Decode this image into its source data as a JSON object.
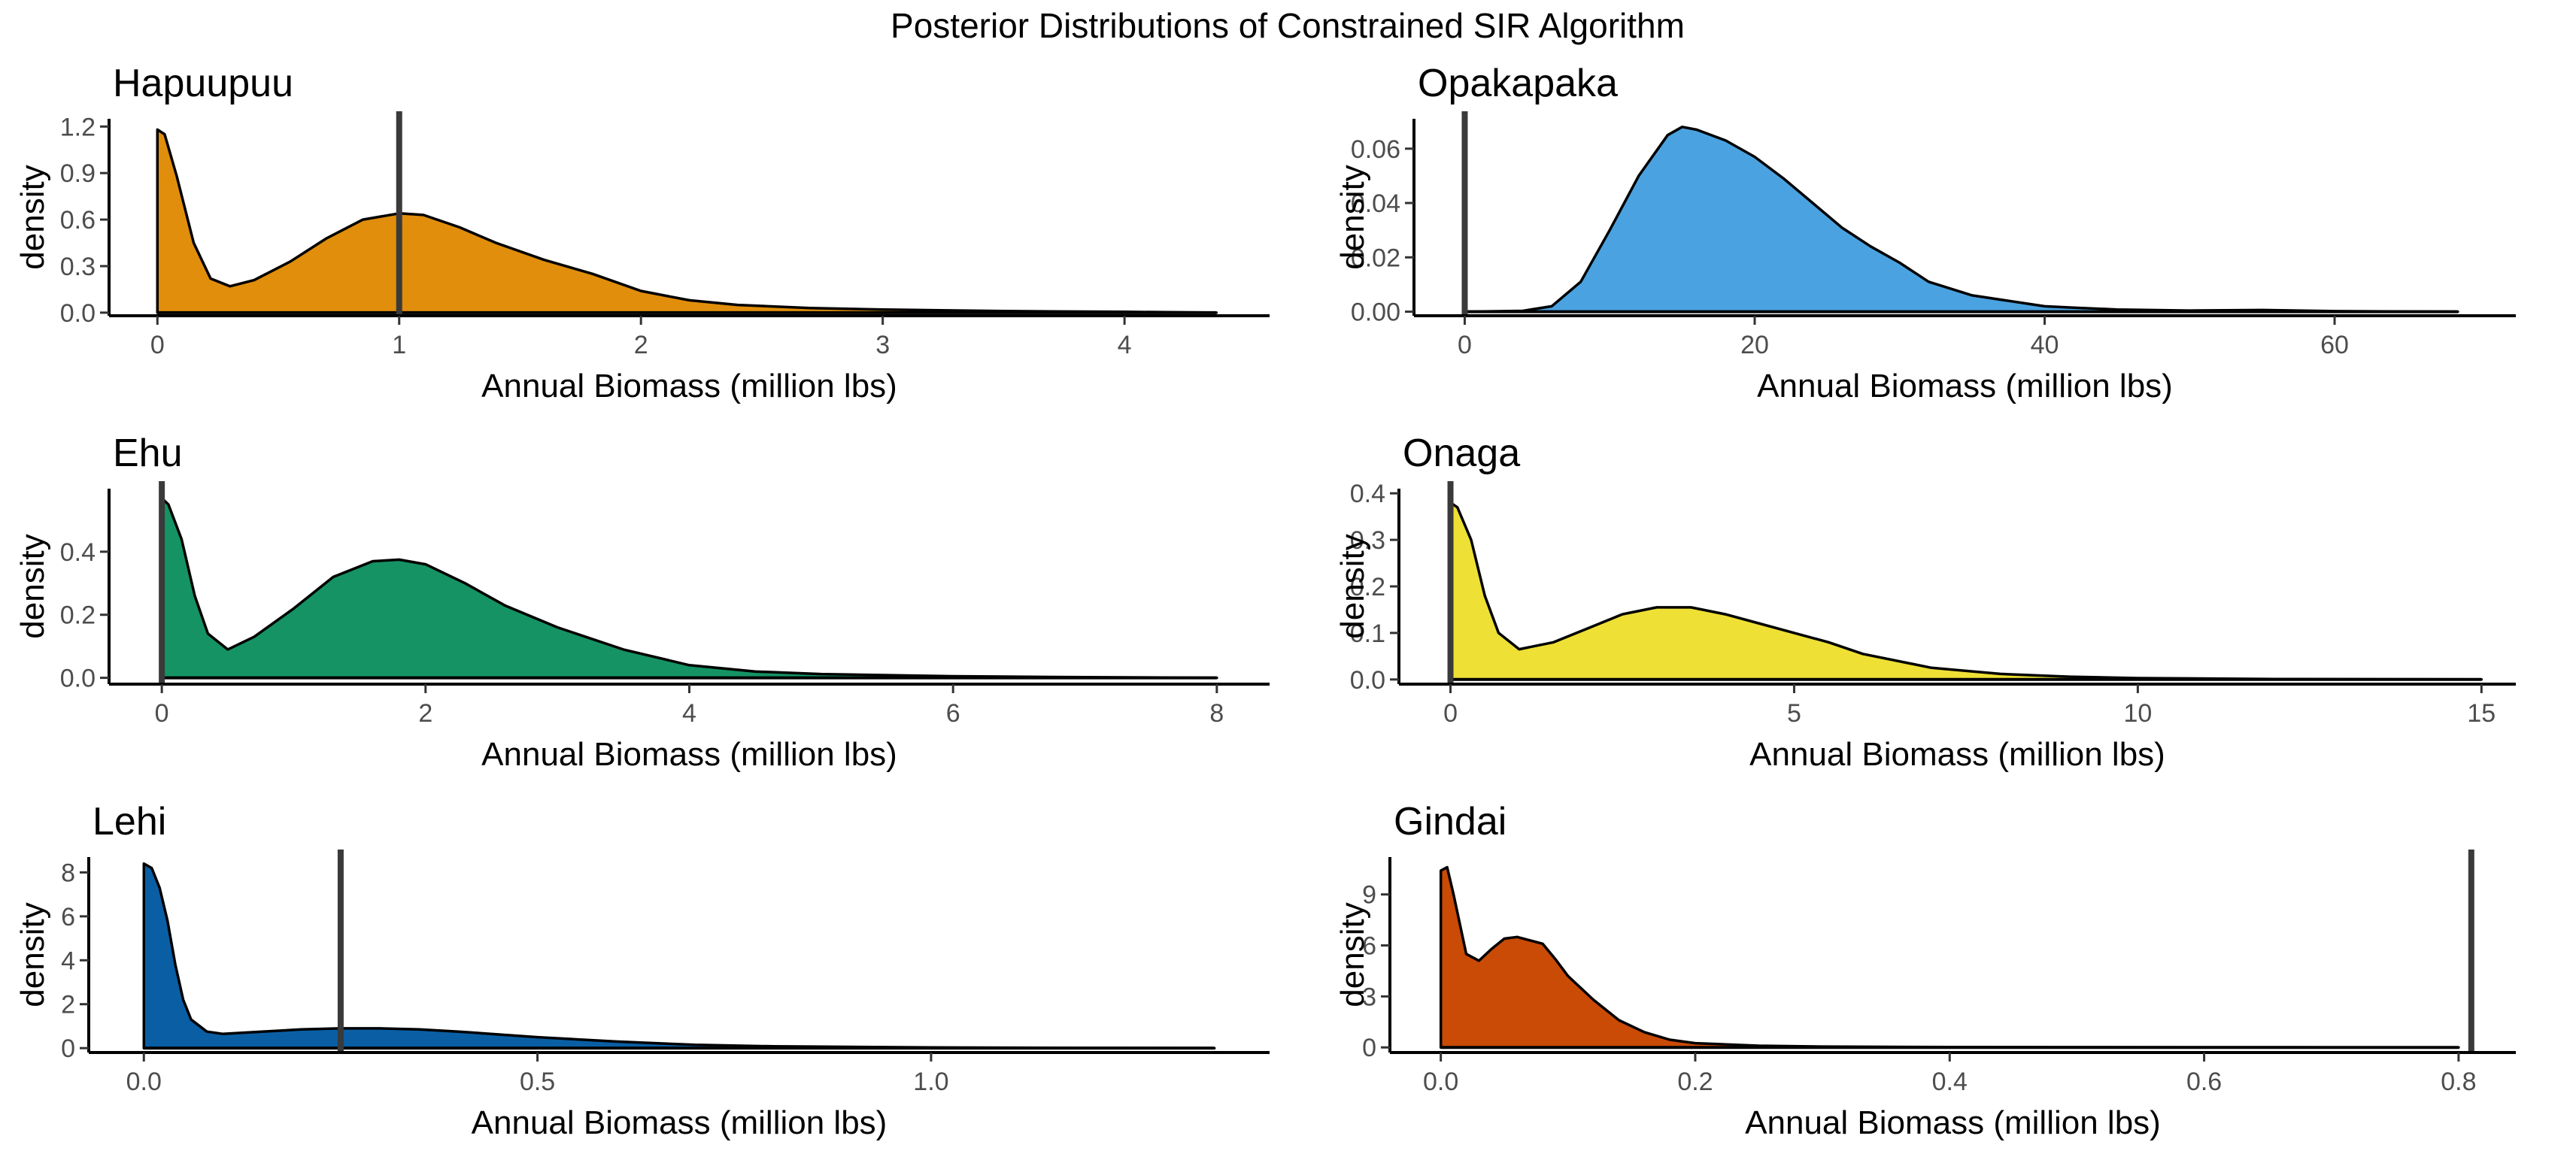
{
  "figure_title": "Posterior Distributions of Constrained SIR Algorithm",
  "chart_data": [
    {
      "type": "area",
      "title": "Hapuupuu",
      "xlabel": "Annual Biomass (million lbs)",
      "ylabel": "density",
      "fill_color": "#E08E0B",
      "xlim": [
        -0.2,
        4.6
      ],
      "ylim": [
        -0.02,
        1.25
      ],
      "x_ticks": [
        0,
        1,
        2,
        3,
        4
      ],
      "x_tick_labels": [
        "0",
        "1",
        "2",
        "3",
        "4"
      ],
      "y_ticks": [
        0,
        0.3,
        0.6,
        0.9,
        1.2
      ],
      "y_tick_labels": [
        "0.0",
        "0.3",
        "0.6",
        "0.9",
        "1.2"
      ],
      "reference_x": 1.0,
      "x": [
        0,
        0.03,
        0.08,
        0.15,
        0.22,
        0.3,
        0.4,
        0.55,
        0.7,
        0.85,
        1.0,
        1.1,
        1.25,
        1.4,
        1.6,
        1.8,
        2.0,
        2.2,
        2.4,
        2.7,
        3.0,
        3.5,
        4.0,
        4.38
      ],
      "y": [
        1.18,
        1.15,
        0.88,
        0.45,
        0.22,
        0.17,
        0.21,
        0.33,
        0.48,
        0.6,
        0.64,
        0.63,
        0.55,
        0.45,
        0.34,
        0.25,
        0.14,
        0.08,
        0.05,
        0.03,
        0.02,
        0.01,
        0.005,
        0.0
      ]
    },
    {
      "type": "area",
      "title": "Opakapaka",
      "xlabel": "Annual Biomass (million lbs)",
      "ylabel": "density",
      "fill_color": "#4AA3E0",
      "xlim": [
        -3.5,
        72.5
      ],
      "ylim": [
        -0.0015,
        0.071
      ],
      "x_ticks": [
        0,
        20,
        40,
        60
      ],
      "x_tick_labels": [
        "0",
        "20",
        "40",
        "60"
      ],
      "y_ticks": [
        0,
        0.02,
        0.04,
        0.06
      ],
      "y_tick_labels": [
        "0.00",
        "0.02",
        "0.04",
        "0.06"
      ],
      "reference_x": 0,
      "x": [
        0,
        4,
        6,
        8,
        10,
        12,
        14,
        15,
        16,
        18,
        20,
        22,
        24,
        26,
        28,
        30,
        32,
        35,
        40,
        42,
        45,
        50,
        55,
        60,
        68.5
      ],
      "y": [
        0,
        0.0003,
        0.002,
        0.011,
        0.03,
        0.05,
        0.065,
        0.068,
        0.067,
        0.063,
        0.057,
        0.049,
        0.04,
        0.031,
        0.024,
        0.018,
        0.011,
        0.006,
        0.002,
        0.0015,
        0.0008,
        0.0004,
        0.0006,
        0.0002,
        0.0
      ]
    },
    {
      "type": "area",
      "title": "Ehu",
      "xlabel": "Annual Biomass (million lbs)",
      "ylabel": "density",
      "fill_color": "#159364",
      "xlim": [
        -0.4,
        8.4
      ],
      "ylim": [
        -0.02,
        0.6
      ],
      "x_ticks": [
        0,
        2,
        4,
        6,
        8
      ],
      "x_tick_labels": [
        "0",
        "2",
        "4",
        "6",
        "8"
      ],
      "y_ticks": [
        0,
        0.2,
        0.4
      ],
      "y_tick_labels": [
        "0.0",
        "0.2",
        "0.4"
      ],
      "reference_x": 0,
      "x": [
        0,
        0.05,
        0.15,
        0.25,
        0.35,
        0.5,
        0.7,
        1.0,
        1.3,
        1.6,
        1.8,
        2.0,
        2.3,
        2.6,
        3.0,
        3.5,
        4.0,
        4.5,
        5.0,
        6.0,
        7.0,
        8.0
      ],
      "y": [
        0.57,
        0.55,
        0.44,
        0.26,
        0.14,
        0.09,
        0.13,
        0.22,
        0.32,
        0.37,
        0.375,
        0.36,
        0.3,
        0.23,
        0.16,
        0.09,
        0.04,
        0.02,
        0.012,
        0.005,
        0.002,
        0.0
      ]
    },
    {
      "type": "area",
      "title": "Onaga",
      "xlabel": "Annual Biomass (million lbs)",
      "ylabel": "density",
      "fill_color": "#EEE035",
      "xlim": [
        -0.75,
        15.5
      ],
      "ylim": [
        -0.01,
        0.41
      ],
      "x_ticks": [
        0,
        5,
        10,
        15
      ],
      "x_tick_labels": [
        "0",
        "5",
        "10",
        "15"
      ],
      "y_ticks": [
        0,
        0.1,
        0.2,
        0.3,
        0.4
      ],
      "y_tick_labels": [
        "0.0",
        "0.1",
        "0.2",
        "0.3",
        "0.4"
      ],
      "reference_x": 0,
      "x": [
        0,
        0.1,
        0.3,
        0.5,
        0.7,
        1.0,
        1.5,
        2.0,
        2.5,
        3.0,
        3.5,
        4.0,
        4.5,
        5.0,
        5.5,
        6.0,
        7.0,
        8.0,
        9.0,
        10.0,
        12.0,
        15.0
      ],
      "y": [
        0.38,
        0.37,
        0.3,
        0.18,
        0.1,
        0.065,
        0.08,
        0.11,
        0.14,
        0.155,
        0.155,
        0.14,
        0.12,
        0.1,
        0.08,
        0.055,
        0.025,
        0.012,
        0.006,
        0.003,
        0.001,
        0.0
      ]
    },
    {
      "type": "area",
      "title": "Lehi",
      "xlabel": "Annual Biomass (million lbs)",
      "ylabel": "density",
      "fill_color": "#0A5FA4",
      "xlim": [
        -0.07,
        1.43
      ],
      "ylim": [
        -0.2,
        8.7
      ],
      "x_ticks": [
        0,
        0.5,
        1.0
      ],
      "x_tick_labels": [
        "0.0",
        "0.5",
        "1.0"
      ],
      "y_ticks": [
        0,
        2,
        4,
        6,
        8
      ],
      "y_tick_labels": [
        "0",
        "2",
        "4",
        "6",
        "8"
      ],
      "reference_x": 0.25,
      "x": [
        0,
        0.01,
        0.02,
        0.03,
        0.04,
        0.05,
        0.06,
        0.08,
        0.1,
        0.15,
        0.2,
        0.25,
        0.3,
        0.35,
        0.4,
        0.5,
        0.6,
        0.7,
        0.8,
        1.0,
        1.2,
        1.36
      ],
      "y": [
        8.4,
        8.2,
        7.3,
        5.8,
        3.8,
        2.2,
        1.3,
        0.75,
        0.65,
        0.75,
        0.85,
        0.9,
        0.9,
        0.85,
        0.75,
        0.5,
        0.3,
        0.15,
        0.08,
        0.03,
        0.01,
        0.0
      ]
    },
    {
      "type": "area",
      "title": "Gindai",
      "xlabel": "Annual Biomass (million lbs)",
      "ylabel": "density",
      "fill_color": "#C94B06",
      "xlim": [
        -0.04,
        0.845
      ],
      "ylim": [
        -0.3,
        11.2
      ],
      "x_ticks": [
        0,
        0.2,
        0.4,
        0.6,
        0.8
      ],
      "x_tick_labels": [
        "0.0",
        "0.2",
        "0.4",
        "0.6",
        "0.8"
      ],
      "y_ticks": [
        0,
        3,
        6,
        9
      ],
      "y_tick_labels": [
        "0",
        "3",
        "6",
        "9"
      ],
      "reference_x": 0.81,
      "x": [
        0,
        0.005,
        0.01,
        0.02,
        0.03,
        0.04,
        0.05,
        0.06,
        0.07,
        0.08,
        0.09,
        0.1,
        0.12,
        0.14,
        0.16,
        0.18,
        0.2,
        0.25,
        0.3,
        0.4,
        0.5,
        0.6,
        0.7,
        0.8
      ],
      "y": [
        10.4,
        10.6,
        9.0,
        5.5,
        5.1,
        5.8,
        6.4,
        6.5,
        6.3,
        6.1,
        5.2,
        4.2,
        2.8,
        1.6,
        0.9,
        0.45,
        0.25,
        0.1,
        0.05,
        0.02,
        0.01,
        0.005,
        0.002,
        0.0
      ]
    }
  ]
}
